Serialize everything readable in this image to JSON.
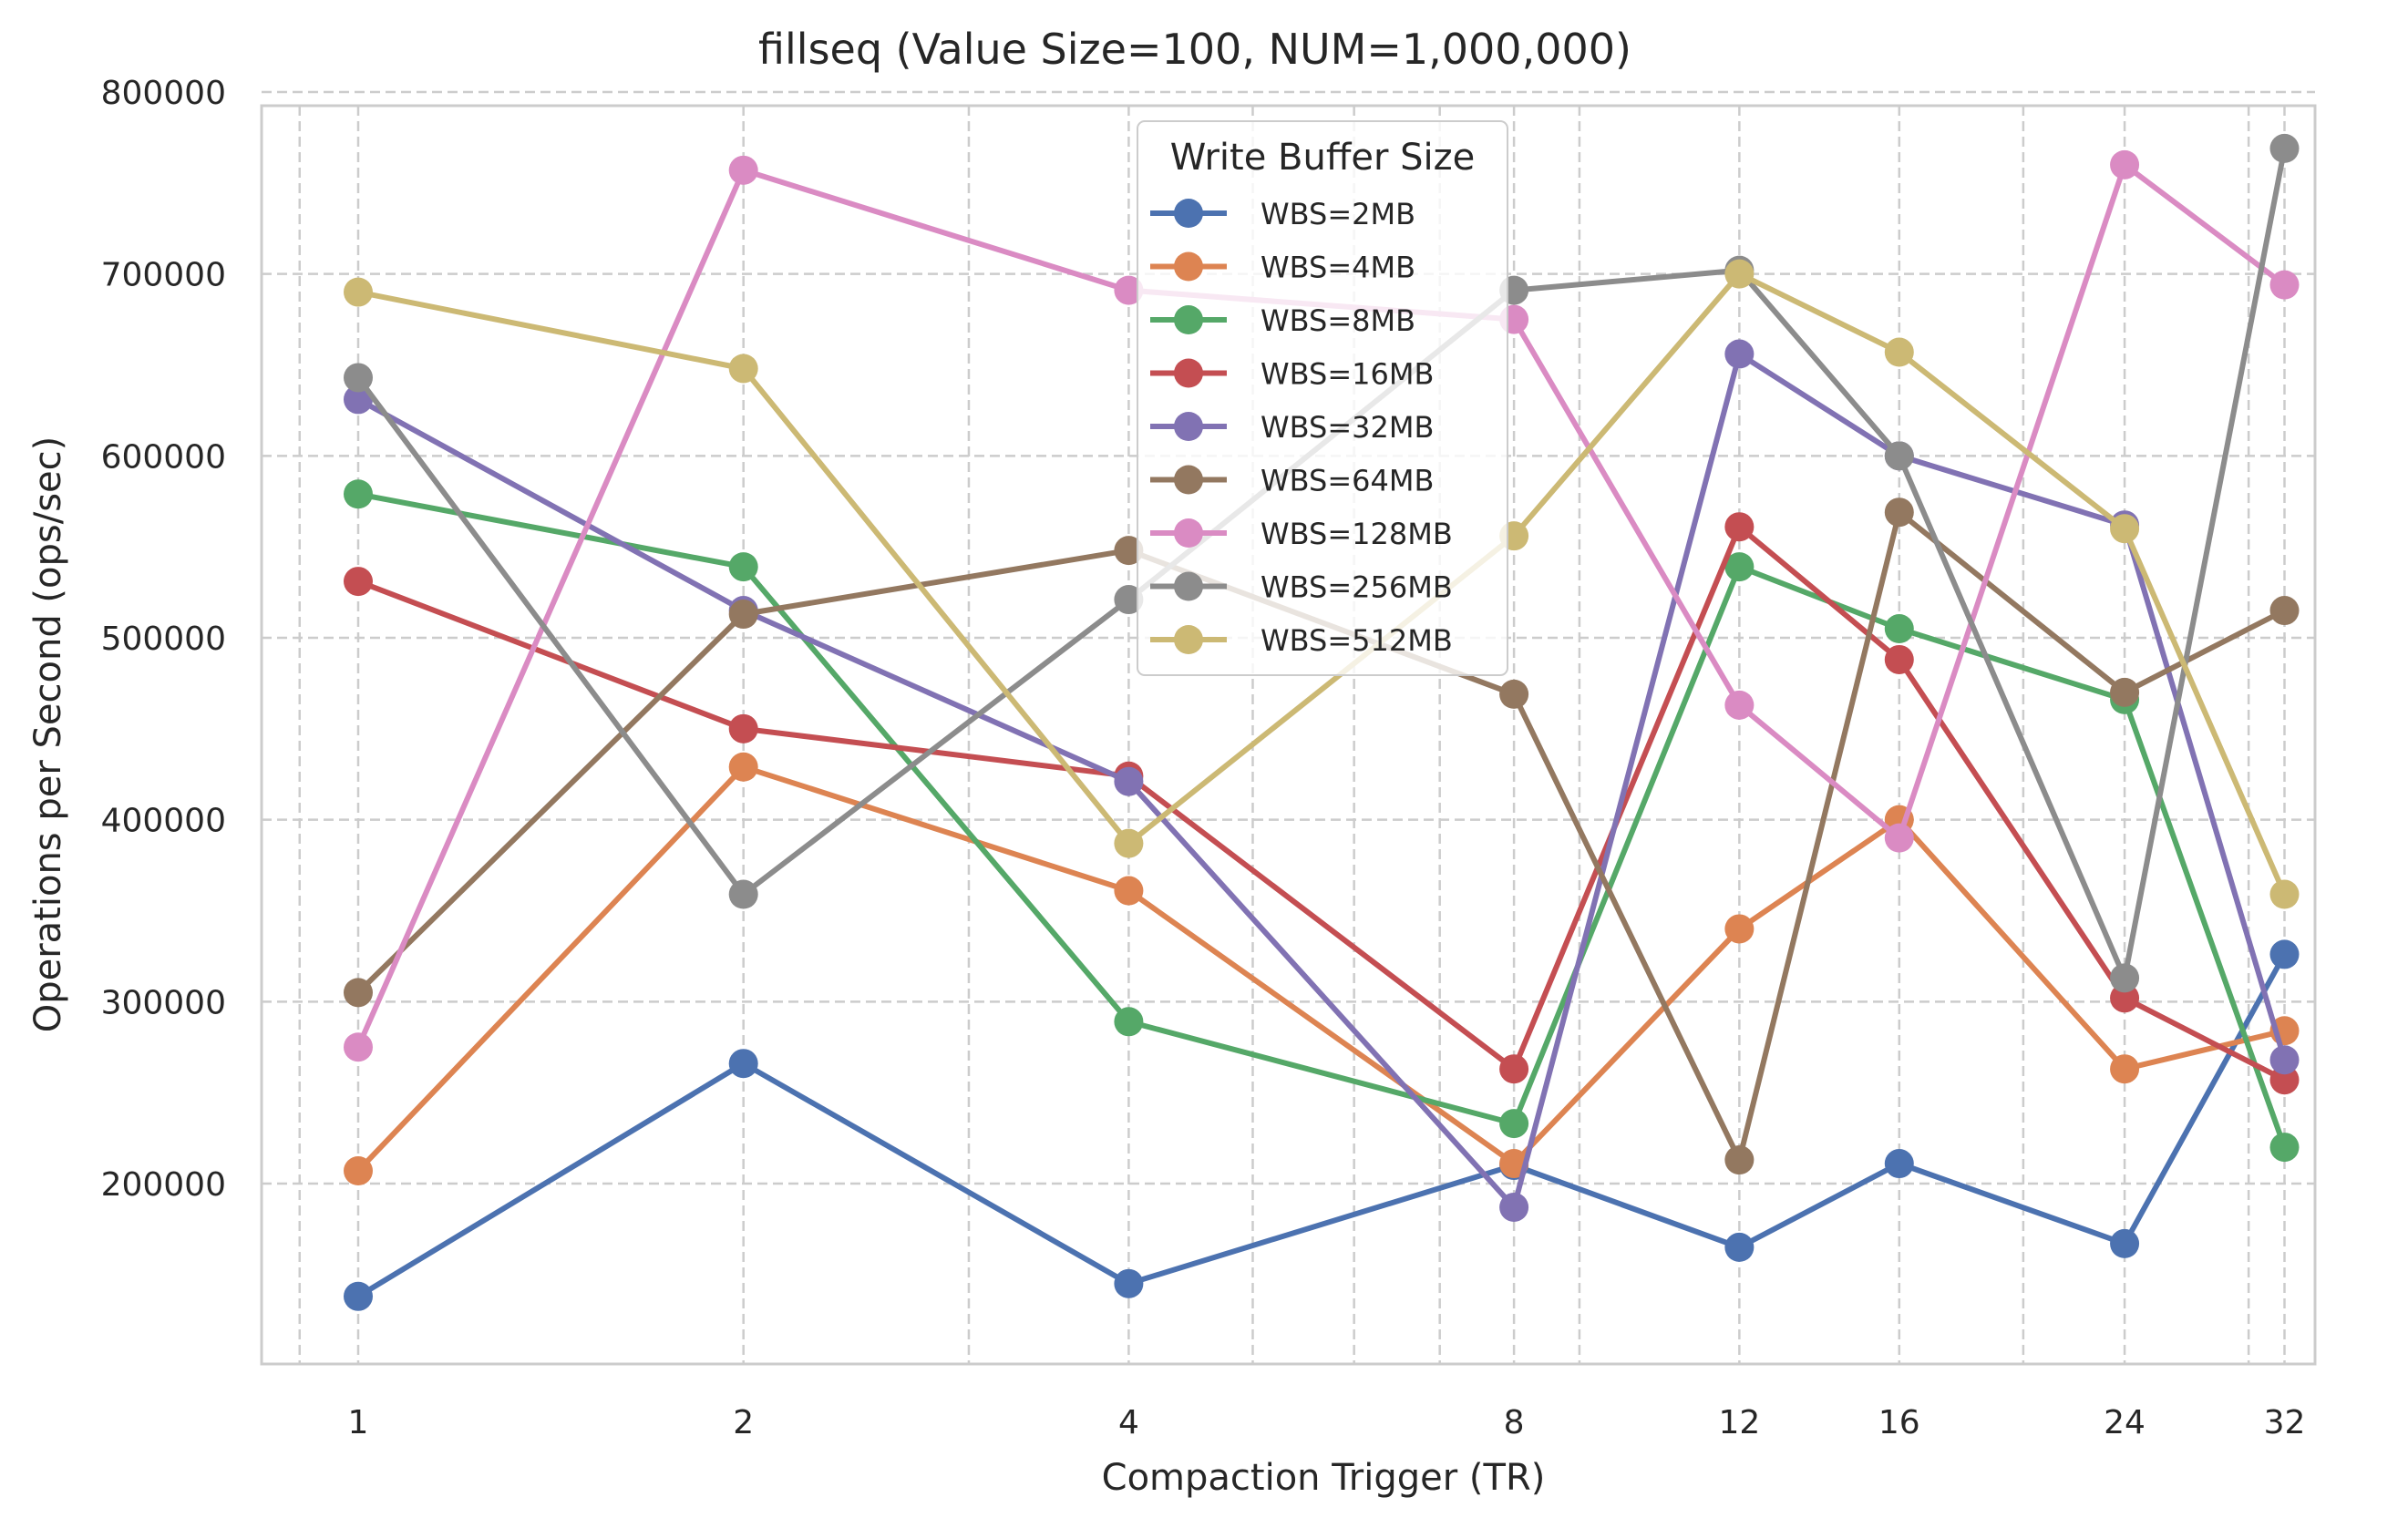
{
  "chart_data": {
    "type": "line",
    "title": "fillseq (Value Size=100, NUM=1,000,000)",
    "xlabel": "Compaction Trigger (TR)",
    "ylabel": "Operations per Second (ops/sec)",
    "x_scale": "log2",
    "x": [
      1,
      2,
      4,
      8,
      12,
      16,
      24,
      32
    ],
    "x_tick_labels": [
      "1",
      "2",
      "4",
      "8",
      "12",
      "16",
      "24",
      "32"
    ],
    "y_ticks": [
      200000,
      300000,
      400000,
      500000,
      600000,
      700000,
      800000
    ],
    "y_tick_labels": [
      "200000",
      "300000",
      "400000",
      "500000",
      "600000",
      "700000",
      "800000"
    ],
    "ylim": [
      108000,
      800000
    ],
    "grid": true,
    "legend": {
      "title": "Write Buffer Size",
      "placement": "top-center"
    },
    "series": [
      {
        "name": "WBS=2MB",
        "color": "#4c72b0",
        "values": [
          138000,
          266000,
          145000,
          210000,
          165000,
          211000,
          167000,
          326000
        ]
      },
      {
        "name": "WBS=4MB",
        "color": "#dd8452",
        "values": [
          207000,
          429000,
          361000,
          211000,
          340000,
          400000,
          263000,
          284000
        ]
      },
      {
        "name": "WBS=8MB",
        "color": "#55a868",
        "values": [
          579000,
          539000,
          289000,
          233000,
          539000,
          505000,
          466000,
          220000
        ]
      },
      {
        "name": "WBS=16MB",
        "color": "#c44e52",
        "values": [
          531000,
          450000,
          424000,
          263000,
          561000,
          488000,
          302000,
          257000
        ]
      },
      {
        "name": "WBS=32MB",
        "color": "#8172b3",
        "values": [
          631000,
          515000,
          421000,
          187000,
          656000,
          600000,
          562000,
          268000
        ]
      },
      {
        "name": "WBS=64MB",
        "color": "#937860",
        "values": [
          305000,
          513000,
          548000,
          469000,
          213000,
          569000,
          470000,
          515000
        ]
      },
      {
        "name": "WBS=128MB",
        "color": "#da8bc3",
        "values": [
          275000,
          757000,
          691000,
          675000,
          463000,
          390000,
          760000,
          694000
        ]
      },
      {
        "name": "WBS=256MB",
        "color": "#8c8c8c",
        "values": [
          643000,
          359000,
          521000,
          691000,
          702000,
          600000,
          313000,
          769000
        ]
      },
      {
        "name": "WBS=512MB",
        "color": "#ccb974",
        "values": [
          690000,
          648000,
          387000,
          556000,
          700000,
          657000,
          560000,
          359000
        ]
      }
    ]
  }
}
